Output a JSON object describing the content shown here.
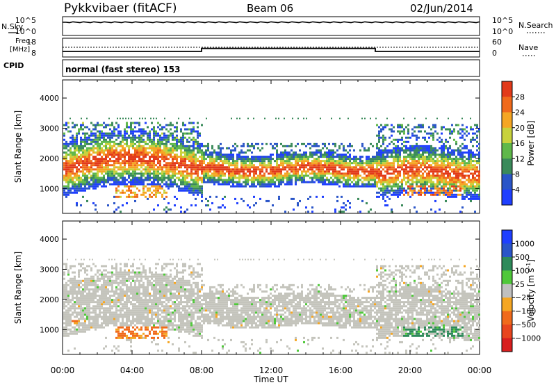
{
  "header": {
    "station": "Pykkvibaer (fitACF)",
    "beam": "Beam 06",
    "date": "02/Jun/2014"
  },
  "noise_panel": {
    "left_label": "N.Sky",
    "left_ticks": [
      "10^5",
      "10^0"
    ],
    "right_label": "N.Search",
    "right_ticks": [
      "10^5",
      "10^0"
    ]
  },
  "freq_panel": {
    "left_label_1": "Freq.",
    "left_label_2": "[MHz]",
    "left_ticks": [
      "18",
      "8"
    ],
    "right_label": "Nave",
    "right_ticks": [
      "60",
      "0"
    ]
  },
  "cpid": {
    "label": "CPID",
    "text": "normal (fast stereo) 153"
  },
  "axes": {
    "ylabel": "Slant Range [km]",
    "xlabel": "Time UT",
    "x_ticks": [
      "00:00",
      "04:00",
      "08:00",
      "12:00",
      "16:00",
      "20:00",
      "00:00"
    ],
    "y_ticks": [
      "1000",
      "2000",
      "3000",
      "4000"
    ]
  },
  "power_colorbar": {
    "label": "Power [dB]",
    "ticks": [
      "4",
      "8",
      "12",
      "16",
      "20",
      "24",
      "28"
    ],
    "colors": [
      "#1f3fff",
      "#2a55c8",
      "#3a8a5a",
      "#5fb84a",
      "#c8d23c",
      "#f5a623",
      "#f06a1c",
      "#e23a1a"
    ]
  },
  "velocity_colorbar": {
    "label": "Velocity [m s",
    "label_sup": "-1",
    "label_end": "]",
    "ticks": [
      "1000",
      "500",
      "100",
      "25",
      "−25",
      "−100",
      "−500",
      "−1000"
    ],
    "colors": [
      "#1f3fff",
      "#2a55c8",
      "#2e8a5a",
      "#4fc83a",
      "#c0c0c0",
      "#f5a623",
      "#f06a1c",
      "#e8451e",
      "#d81e1e"
    ]
  },
  "chart_data": [
    {
      "type": "line",
      "title": "",
      "ylabel": "N.Sky",
      "x": [
        0,
        24
      ],
      "series": [
        {
          "values": [
            4.5,
            4.5
          ]
        }
      ]
    },
    {
      "type": "line",
      "ylabel": "Freq. [MHz]",
      "x": [
        0,
        8,
        8,
        18,
        18,
        24
      ],
      "series": [
        {
          "values": [
            10.5,
            10.5,
            12.3,
            12.3,
            10.5,
            10.5
          ]
        }
      ]
    },
    {
      "type": "heatmap",
      "ylabel": "Slant Range [km]",
      "xlabel": "Time UT",
      "xlim": [
        0,
        24
      ],
      "ylim": [
        180,
        4600
      ],
      "colorbar": "Power [dB]"
    },
    {
      "type": "heatmap",
      "ylabel": "Slant Range [km]",
      "xlabel": "Time UT",
      "xlim": [
        0,
        24
      ],
      "ylim": [
        180,
        4600
      ],
      "colorbar": "Velocity [m s-1]"
    }
  ]
}
